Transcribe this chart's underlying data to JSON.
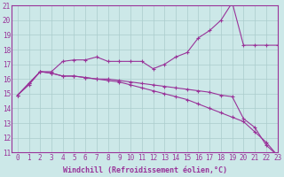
{
  "line1_x": [
    0,
    1,
    2,
    3,
    4,
    5,
    6,
    7,
    8,
    9,
    10,
    11,
    12,
    13,
    14,
    15,
    16,
    17,
    18,
    19,
    20,
    21,
    22,
    23
  ],
  "line1_y": [
    14.9,
    15.6,
    16.5,
    16.5,
    17.2,
    17.3,
    17.3,
    17.5,
    17.2,
    17.2,
    17.2,
    17.2,
    16.7,
    17.0,
    17.5,
    17.8,
    18.8,
    19.3,
    20.0,
    21.2,
    18.3,
    18.3,
    18.3,
    18.3
  ],
  "line2_x": [
    0,
    1,
    2,
    3,
    4,
    5,
    6,
    7,
    8,
    9,
    10,
    11,
    12,
    13,
    14,
    15,
    16,
    17,
    18,
    19,
    20,
    21,
    22,
    23
  ],
  "line2_y": [
    14.9,
    15.7,
    16.5,
    16.4,
    16.2,
    16.2,
    16.1,
    16.0,
    16.0,
    15.9,
    15.8,
    15.7,
    15.6,
    15.5,
    15.4,
    15.3,
    15.2,
    15.1,
    14.9,
    14.8,
    13.3,
    12.7,
    11.5,
    10.8
  ],
  "line3_x": [
    0,
    1,
    2,
    3,
    4,
    5,
    6,
    7,
    8,
    9,
    10,
    11,
    12,
    13,
    14,
    15,
    16,
    17,
    18,
    19,
    20,
    21,
    22,
    23
  ],
  "line3_y": [
    14.9,
    15.7,
    16.5,
    16.4,
    16.2,
    16.2,
    16.1,
    16.0,
    15.9,
    15.8,
    15.6,
    15.4,
    15.2,
    15.0,
    14.8,
    14.6,
    14.3,
    14.0,
    13.7,
    13.4,
    13.1,
    12.4,
    11.7,
    10.8
  ],
  "line_color": "#993399",
  "marker": "+",
  "markersize": 3,
  "xlim": [
    -0.5,
    23
  ],
  "ylim": [
    11,
    21
  ],
  "xticks": [
    0,
    1,
    2,
    3,
    4,
    5,
    6,
    7,
    8,
    9,
    10,
    11,
    12,
    13,
    14,
    15,
    16,
    17,
    18,
    19,
    20,
    21,
    22,
    23
  ],
  "yticks": [
    11,
    12,
    13,
    14,
    15,
    16,
    17,
    18,
    19,
    20,
    21
  ],
  "xlabel": "Windchill (Refroidissement éolien,°C)",
  "background_color": "#cce8e8",
  "grid_color": "#aacccc",
  "line_width": 0.8,
  "tick_fontsize": 5.5,
  "xlabel_fontsize": 6.0
}
